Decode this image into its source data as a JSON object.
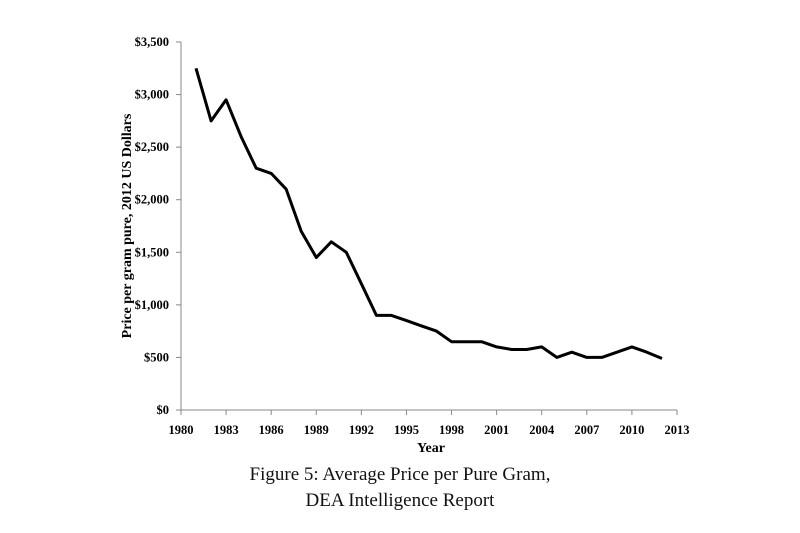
{
  "chart_data": {
    "type": "line",
    "xlabel": "Year",
    "ylabel": "Price per gram pure, 2012 US Dollars",
    "xlim": [
      1980,
      2013
    ],
    "ylim": [
      0,
      3500
    ],
    "x_ticks": [
      1980,
      1983,
      1986,
      1989,
      1992,
      1995,
      1998,
      2001,
      2004,
      2007,
      2010,
      2013
    ],
    "y_ticks": [
      0,
      500,
      1000,
      1500,
      2000,
      2500,
      3000,
      3500
    ],
    "y_tick_labels": [
      "$0",
      "$500",
      "$1,000",
      "$1,500",
      "$2,000",
      "$2,500",
      "$3,000",
      "$3,500"
    ],
    "grid": false,
    "line_color": "#000000",
    "series": [
      {
        "x": [
          1981,
          1982,
          1983,
          1984,
          1985,
          1986,
          1987,
          1988,
          1989,
          1990,
          1991,
          1992,
          1993,
          1994,
          1995,
          1996,
          1997,
          1998,
          1999,
          2000,
          2001,
          2002,
          2003,
          2004,
          2005,
          2006,
          2007,
          2008,
          2009,
          2010,
          2011,
          2012
        ],
        "values": [
          3250,
          2750,
          2950,
          2600,
          2300,
          2250,
          2100,
          1700,
          1450,
          1600,
          1500,
          1200,
          900,
          900,
          850,
          800,
          750,
          650,
          650,
          650,
          600,
          575,
          575,
          600,
          500,
          550,
          500,
          500,
          550,
          600,
          550,
          490
        ]
      }
    ]
  },
  "caption": {
    "line1": "Figure 5: Average Price per Pure Gram,",
    "line2": "DEA Intelligence Report"
  }
}
